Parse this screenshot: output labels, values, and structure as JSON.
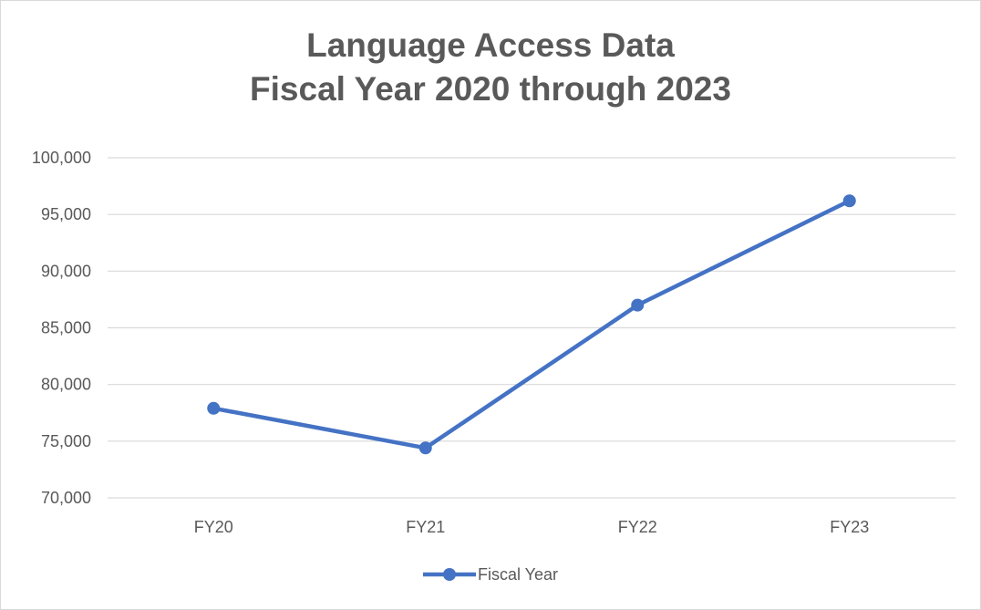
{
  "chart_data": {
    "type": "line",
    "title": [
      "Language Access Data",
      "Fiscal Year 2020 through 2023"
    ],
    "categories": [
      "FY20",
      "FY21",
      "FY22",
      "FY23"
    ],
    "series": [
      {
        "name": "Fiscal Year",
        "values": [
          77900,
          74400,
          87000,
          96200
        ],
        "color": "#4472c4"
      }
    ],
    "ylim": [
      70000,
      100000
    ],
    "yticks": [
      70000,
      75000,
      80000,
      85000,
      90000,
      95000,
      100000
    ],
    "ytick_labels": [
      "70,000",
      "75,000",
      "80,000",
      "85,000",
      "90,000",
      "95,000",
      "100,000"
    ],
    "grid": true,
    "legend_position": "bottom",
    "xlabel": "",
    "ylabel": ""
  }
}
